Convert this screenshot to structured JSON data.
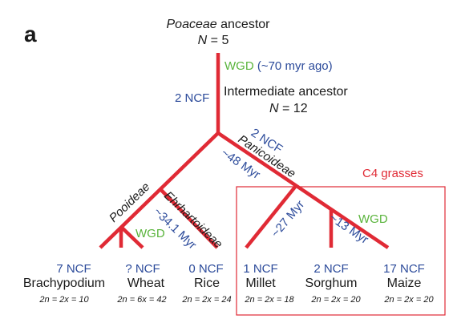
{
  "panel_label": "a",
  "root": {
    "name": "Poaceae",
    "suffix": " ancestor",
    "n_label": "N",
    "n_value": " = 5"
  },
  "root_event": {
    "wgd": "WGD",
    "age": " (~70 myr ago)"
  },
  "intermediate": {
    "ncf": "2 NCF",
    "name": "Intermediate ancestor",
    "n_label": "N",
    "n_value": " = 12"
  },
  "clades": {
    "panicoideae": {
      "ncf": "2 NCF",
      "name": "Panicoideae",
      "age": "~48 Myr"
    },
    "pooideae": {
      "name": "Pooideae"
    },
    "ehrhartoideae": {
      "name": "Ehrhartoideae",
      "age": "~34.1 Myr"
    },
    "millet_split_age": "~27 Myr",
    "maize_split_age": "~13 Myr"
  },
  "wgd_wheat": "WGD",
  "wgd_maize": "WGD",
  "c4_label": "C4 grasses",
  "species": [
    {
      "ncf": "7 NCF",
      "name": "Brachypodium",
      "ploidy": "2n = 2x = 10"
    },
    {
      "ncf": "? NCF",
      "name": "Wheat",
      "ploidy": "2n = 6x = 42"
    },
    {
      "ncf": "0 NCF",
      "name": "Rice",
      "ploidy": "2n = 2x = 24"
    },
    {
      "ncf": "1 NCF",
      "name": "Millet",
      "ploidy": "2n = 2x = 18"
    },
    {
      "ncf": "2 NCF",
      "name": "Sorghum",
      "ploidy": "2n = 2x = 20"
    },
    {
      "ncf": "17 NCF",
      "name": "Maize",
      "ploidy": "2n = 2x = 20"
    }
  ],
  "colors": {
    "branch": "#e02a35",
    "ncf_text": "#2b4a9a",
    "wgd_text": "#5ab43c",
    "label_text": "#1a1a1a"
  }
}
